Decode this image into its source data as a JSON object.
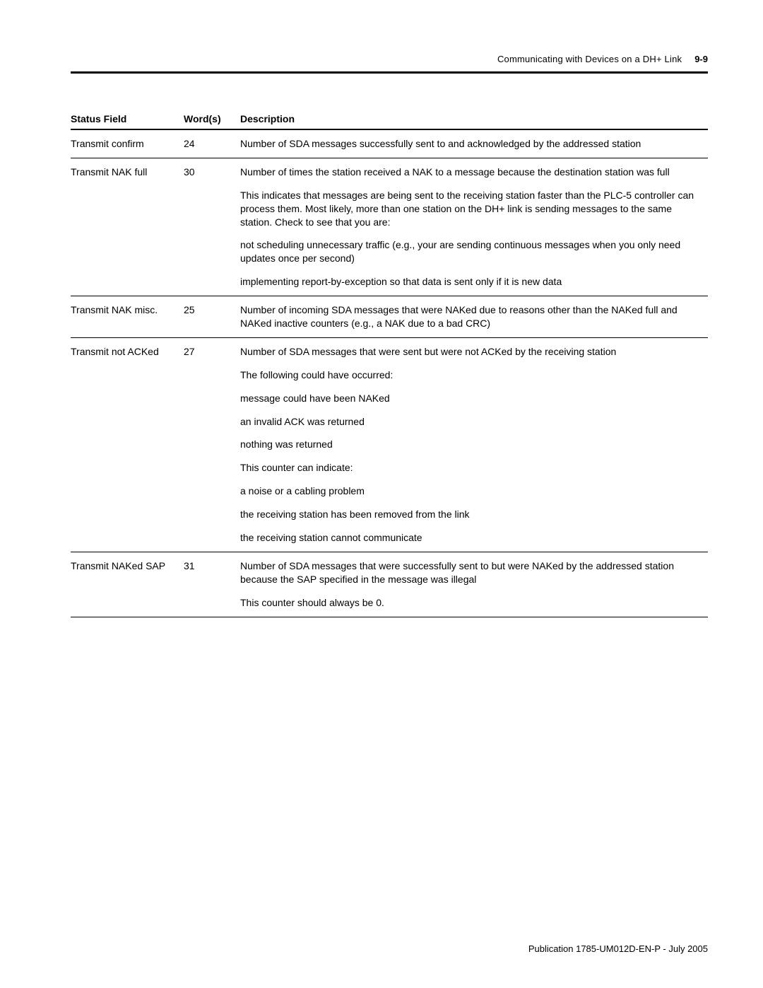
{
  "header": {
    "title": "Communicating with Devices on a DH+ Link",
    "page_number": "9-9"
  },
  "table": {
    "columns": [
      "Status Field",
      "Word(s)",
      "Description"
    ],
    "rows": [
      {
        "field": "Transmit confirm",
        "word": "24",
        "desc": [
          "Number of SDA messages successfully sent to and acknowledged by the addressed station"
        ]
      },
      {
        "field": "Transmit NAK full",
        "word": "30",
        "desc": [
          "Number of times the station received a NAK to a message because the destination station was full",
          "This indicates that messages are being sent to the receiving station faster than the PLC-5 controller can process them.  Most likely, more than one station on the DH+ link is sending messages to the same station.  Check to see that you are:",
          "not scheduling unnecessary traffic (e.g., your are sending continuous messages when you only need updates once per second)",
          "implementing report-by-exception so that data is sent only if it is new data"
        ]
      },
      {
        "field": "Transmit NAK misc.",
        "word": "25",
        "desc": [
          "Number of incoming SDA messages that were NAKed due to reasons other than the NAKed full and NAKed inactive counters (e.g., a NAK due to a bad CRC)"
        ]
      },
      {
        "field": "Transmit not ACKed",
        "word": "27",
        "desc": [
          "Number of SDA messages that were sent but were not ACKed by the receiving station",
          "The following could have occurred:",
          "message could have been NAKed",
          "an invalid ACK was returned",
          "nothing was returned",
          "This counter can indicate:",
          "a noise or a cabling problem",
          "the receiving station has been removed from the link",
          "the receiving station cannot communicate"
        ]
      },
      {
        "field": "Transmit NAKed SAP",
        "word": "31",
        "desc": [
          "Number of SDA messages that were successfully sent to but were NAKed by the addressed station because the SAP specified in the message was illegal",
          "This counter should always be 0."
        ]
      }
    ]
  },
  "footer": {
    "publication": "Publication 1785-UM012D-EN-P - July 2005"
  }
}
